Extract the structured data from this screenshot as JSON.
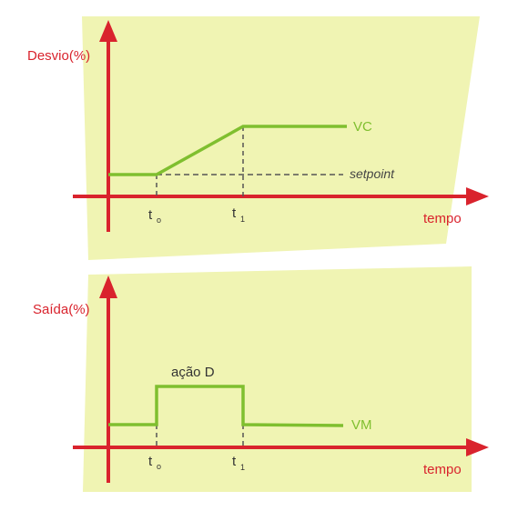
{
  "colors": {
    "panel": "#f0f4b3",
    "axis": "#d9232d",
    "curve": "#7fbf2f",
    "dashed": "#555555",
    "text": "#333333"
  },
  "top_chart": {
    "y_label": "Desvio(%)",
    "x_label": "tempo",
    "curve_label": "VC",
    "reference_label": "setpoint",
    "tick_t0": {
      "main": "t",
      "sub": "o"
    },
    "tick_t1": {
      "main": "t",
      "sub": "1"
    }
  },
  "bottom_chart": {
    "y_label": "Saída(%)",
    "x_label": "tempo",
    "curve_label": "VM",
    "pulse_label": "ação D",
    "tick_t0": {
      "main": "t",
      "sub": "o"
    },
    "tick_t1": {
      "main": "t",
      "sub": "1"
    }
  }
}
